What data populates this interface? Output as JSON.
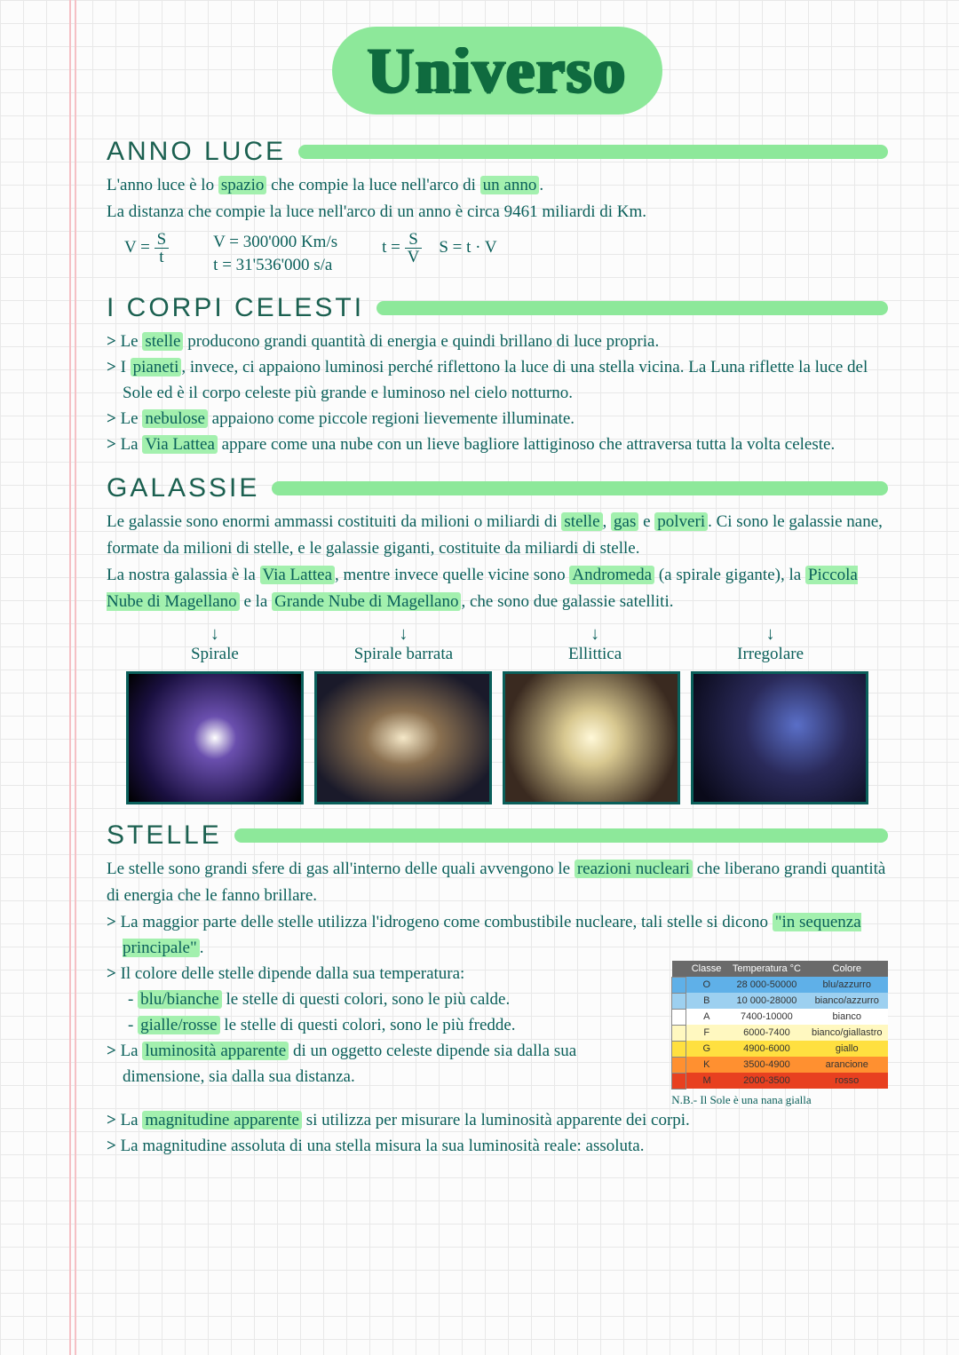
{
  "title": "Universo",
  "sections": {
    "anno_luce": {
      "heading": "ANNO LUCE",
      "line1_a": "L'anno luce è lo ",
      "line1_hl": "spazio",
      "line1_b": " che compie la luce nell'arco di ",
      "line1_hl2": "un anno",
      "line1_c": ".",
      "line2": "La distanza che compie la luce nell'arco di un anno è circa 9461 miliardi di Km.",
      "formula": {
        "v_eq": "V =",
        "v_num": "S",
        "v_den": "t",
        "v_val": "V = 300'000 Km/s",
        "t_val": "t = 31'536'000 s/a",
        "t_eq": "t =",
        "t_num": "S",
        "t_den": "V",
        "s_eq": "S = t · V"
      }
    },
    "corpi": {
      "heading": "I CORPI CELESTI",
      "b1_a": "Le ",
      "b1_hl": "stelle",
      "b1_b": " producono grandi quantità di energia e quindi brillano di luce propria.",
      "b2_a": "I ",
      "b2_hl": "pianeti",
      "b2_b": ", invece, ci appaiono luminosi perché riflettono la luce di una stella vicina. La Luna riflette la luce del Sole ed è il corpo celeste più grande e luminoso nel cielo notturno.",
      "b3_a": "Le ",
      "b3_hl": "nebulose",
      "b3_b": " appaiono come piccole regioni lievemente illuminate.",
      "b4_a": "La ",
      "b4_hl": "Via Lattea",
      "b4_b": " appare come una nube con un lieve bagliore lattiginoso che attraversa tutta la volta celeste."
    },
    "galassie": {
      "heading": "GALASSIE",
      "p1_a": "Le galassie sono enormi ammassi costituiti da milioni o miliardi di ",
      "p1_hl1": "stelle",
      "p1_b": ", ",
      "p1_hl2": "gas",
      "p1_c": " e ",
      "p1_hl3": "polveri",
      "p1_d": ". Ci sono le galassie nane, formate da milioni di stelle, e le galassie giganti, costituite da miliardi di stelle.",
      "p2_a": "La nostra galassia è la ",
      "p2_hl1": "Via Lattea",
      "p2_b": ", mentre invece quelle vicine sono ",
      "p2_hl2": "Andromeda",
      "p2_c": " (a spirale gigante), la ",
      "p2_hl3": "Piccola Nube di Magellano",
      "p2_d": " e la ",
      "p2_hl4": "Grande Nube di Magellano",
      "p2_e": ", che sono due galassie satelliti.",
      "types": [
        "Spirale",
        "Spirale barrata",
        "Ellittica",
        "Irregolare"
      ]
    },
    "stelle": {
      "heading": "STELLE",
      "p1_a": "Le stelle sono grandi sfere di gas all'interno delle quali avvengono le ",
      "p1_hl1": "reazioni nucleari",
      "p1_b": " che liberano grandi quantità di energia che le fanno brillare.",
      "b1": "La maggior parte delle stelle utilizza l'idrogeno come combustibile nucleare, tali stelle si dicono ",
      "b1_hl": "\"in sequenza principale\"",
      "b1_b": ".",
      "b2": "Il colore delle stelle dipende dalla sua temperatura:",
      "s1_hl": "blu/bianche",
      "s1": " le stelle di questi colori, sono le più calde.",
      "s2_hl": "gialle/rosse",
      "s2": " le stelle di questi colori, sono le più fredde.",
      "b3_a": "La ",
      "b3_hl": "luminosità apparente",
      "b3_b": " di un oggetto celeste dipende sia dalla sua dimensione, sia dalla sua distanza.",
      "b4_a": "La ",
      "b4_hl": "magnitudine apparente",
      "b4_b": " si utilizza per misurare la luminosità apparente dei corpi.",
      "b5": "La magnitudine assoluta di una stella misura la sua luminosità reale: assoluta.",
      "table": {
        "headers": [
          "Classe",
          "Temperatura °C",
          "Colore"
        ],
        "rows": [
          {
            "c": "O",
            "t": "28 000-50000",
            "col": "blu/azzurro",
            "bg": "#5fb0e8"
          },
          {
            "c": "B",
            "t": "10 000-28000",
            "col": "bianco/azzurro",
            "bg": "#9dd0f0"
          },
          {
            "c": "A",
            "t": "7400-10000",
            "col": "bianco",
            "bg": "#ffffff"
          },
          {
            "c": "F",
            "t": "6000-7400",
            "col": "bianco/giallastro",
            "bg": "#fff8c0"
          },
          {
            "c": "G",
            "t": "4900-6000",
            "col": "giallo",
            "bg": "#ffe040"
          },
          {
            "c": "K",
            "t": "3500-4900",
            "col": "arancione",
            "bg": "#ff9030"
          },
          {
            "c": "M",
            "t": "2000-3500",
            "col": "rosso",
            "bg": "#e84020"
          }
        ],
        "nb": "N.B.- Il Sole è una nana gialla"
      }
    }
  }
}
